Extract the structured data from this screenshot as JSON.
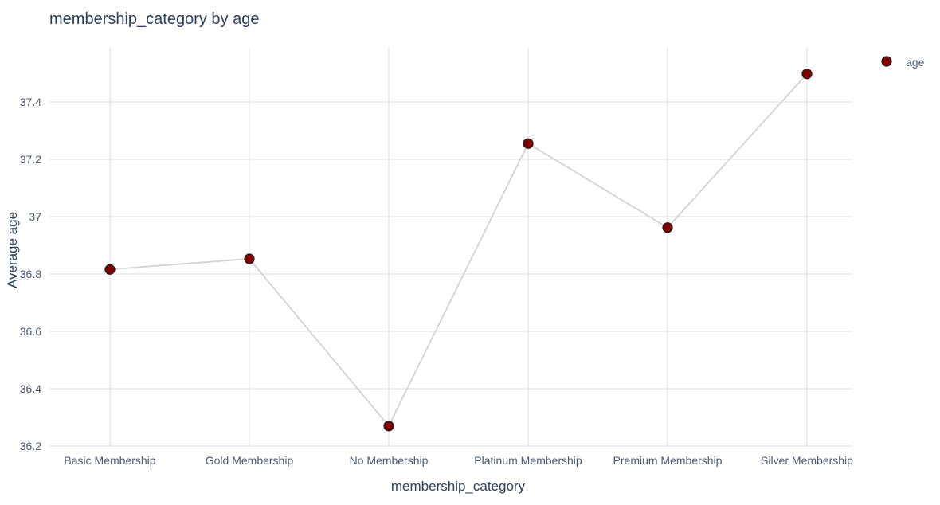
{
  "chart_data": {
    "type": "line",
    "title": "membership_category by age",
    "xlabel": "membership_category",
    "ylabel": "Average age",
    "categories": [
      "Basic Membership",
      "Gold Membership",
      "No Membership",
      "Platinum Membership",
      "Premium Membership",
      "Silver Membership"
    ],
    "series": [
      {
        "name": "age",
        "values": [
          36.816,
          36.853,
          36.27,
          37.255,
          36.962,
          37.498
        ]
      }
    ],
    "ylim": [
      36.2,
      37.6
    ],
    "yticks": [
      36.2,
      36.4,
      36.6,
      36.8,
      37,
      37.2,
      37.4
    ],
    "ytick_labels": [
      "36.2",
      "36.4",
      "36.6",
      "36.8",
      "37",
      "37.2",
      "37.4"
    ],
    "grid": true,
    "legend_position": "top-right",
    "colors": {
      "marker_fill": "#800000",
      "marker_stroke": "#1a1a1a",
      "line": "#d3d3d3",
      "grid": "#e7e9f2",
      "text": "#2a3f5f",
      "tick_text": "#4a5a73"
    }
  }
}
